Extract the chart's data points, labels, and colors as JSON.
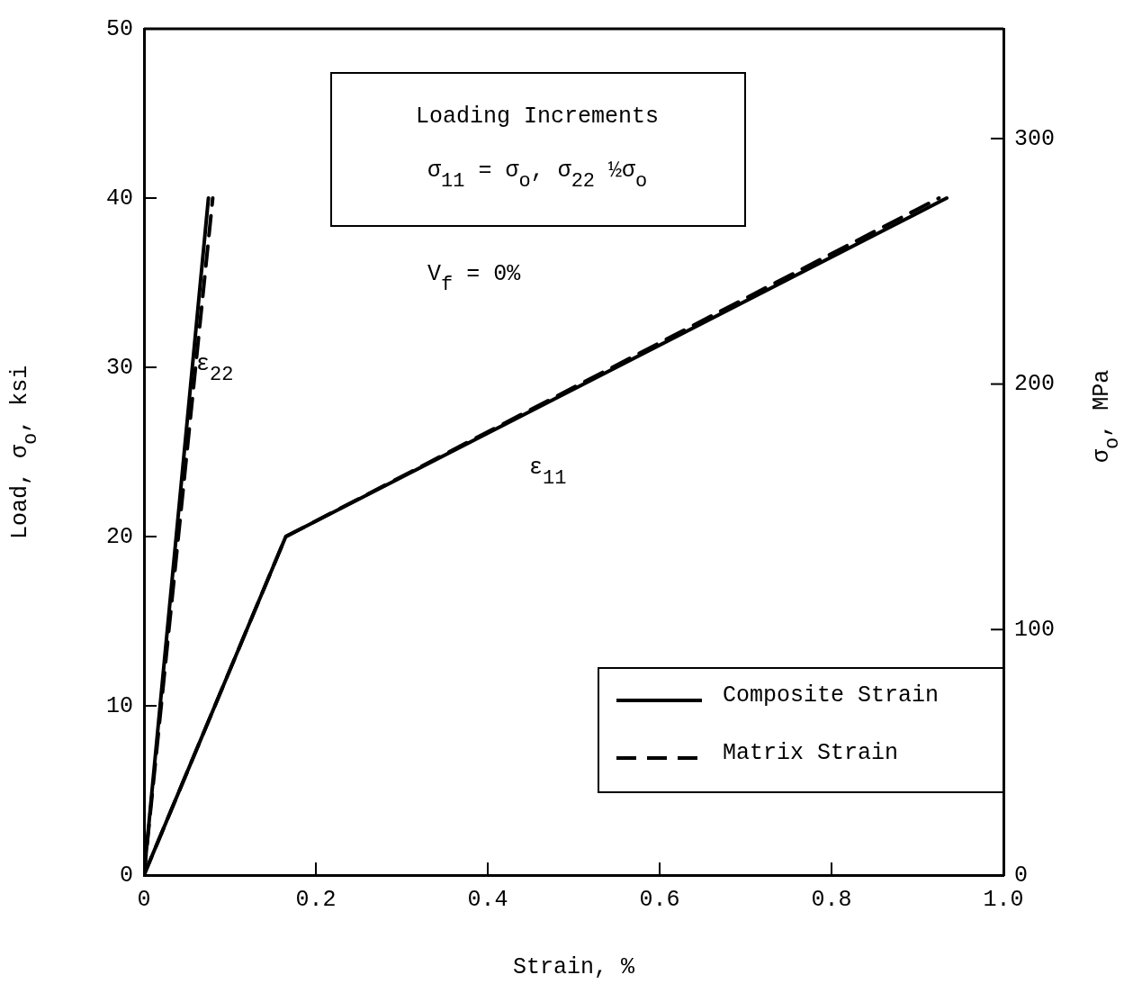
{
  "chart_data": {
    "type": "line",
    "xlabel": "Strain, %",
    "ylabel": "Load, σ$_{o}$, ksi",
    "y2label": "σ$_{o}$, MPa",
    "xlim": [
      0,
      1.0
    ],
    "xticks": [
      0,
      {
        "value": 0.2,
        "label": "0.2"
      },
      {
        "value": 0.4,
        "label": "0.4"
      },
      {
        "value": 0.6,
        "label": "0.6"
      },
      {
        "value": 0.8,
        "label": "0.8"
      },
      {
        "value": 1.0,
        "label": "1.0"
      }
    ],
    "ylim": [
      0,
      50
    ],
    "yticks": [
      0,
      10,
      20,
      30,
      40,
      50
    ],
    "y2lim": [
      0,
      344.7
    ],
    "y2ticks": [
      0,
      100,
      200,
      300
    ],
    "grid": false,
    "legend": "bottom right",
    "marker": "none",
    "series": [
      {
        "name": "Composite Strain",
        "color": "#000000",
        "line_style": "solid",
        "x": [
          0,
          0.165,
          0.934
        ],
        "values": [
          0,
          20,
          40
        ]
      },
      {
        "color": "#000000",
        "line_style": "solid",
        "x": [
          0,
          0.075
        ],
        "values": [
          0,
          40
        ]
      },
      {
        "name": "Matrix Strain",
        "color": "#000000",
        "line_style": "dashed",
        "x": [
          0,
          0.165,
          0.925
        ],
        "values": [
          0,
          20,
          40
        ]
      },
      {
        "color": "#000000",
        "line_style": "dashed",
        "x": [
          0,
          0.08
        ],
        "values": [
          0,
          40
        ]
      }
    ],
    "annotations": [
      "Loading Increments",
      "σ$_{11}$ = σ$_{o}$, σ$_{22}$ ½σ$_{o}$",
      "V$_{f}$ = 0%",
      "ε$_{22}$",
      "ε$_{11}$"
    ]
  }
}
